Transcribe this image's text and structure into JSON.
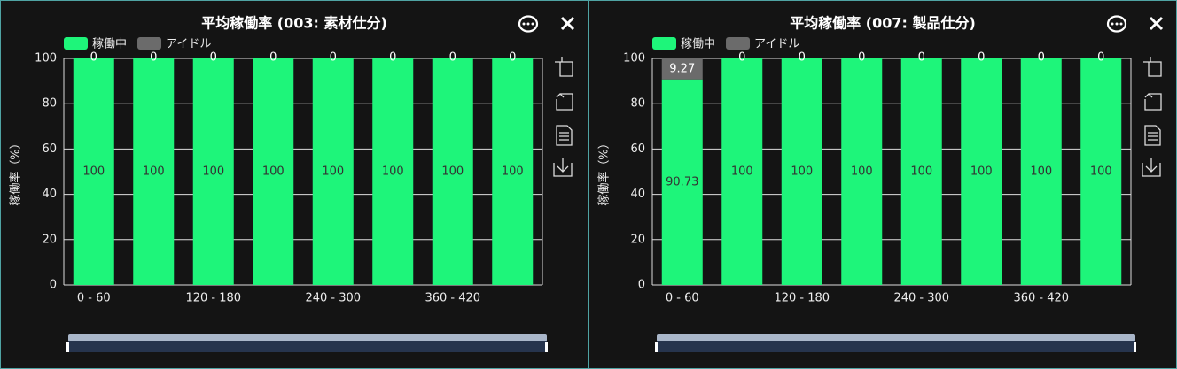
{
  "chart_data": [
    {
      "type": "stacked-bar",
      "title": "平均稼働率 (003: 素材仕分)",
      "y_label": "稼働率（%）",
      "categories": [
        "0 - 60",
        null,
        "120 - 180",
        null,
        "240 - 300",
        null,
        "360 - 420",
        null
      ],
      "series": [
        {
          "name": "稼働中",
          "color": "#1ef57a",
          "values": [
            100,
            100,
            100,
            100,
            100,
            100,
            100,
            100
          ]
        },
        {
          "name": "アイドル",
          "color": "#6b6b6b",
          "values": [
            0,
            0,
            0,
            0,
            0,
            0,
            0,
            0
          ]
        }
      ],
      "ylim": [
        0,
        100
      ],
      "yticks": [
        0,
        20,
        40,
        60,
        80,
        100
      ],
      "grid": true
    },
    {
      "type": "stacked-bar",
      "title": "平均稼働率 (007: 製品仕分)",
      "y_label": "稼働率（%）",
      "categories": [
        "0 - 60",
        null,
        "120 - 180",
        null,
        "240 - 300",
        null,
        "360 - 420",
        null
      ],
      "series": [
        {
          "name": "稼働中",
          "color": "#1ef57a",
          "values": [
            90.73,
            100,
            100,
            100,
            100,
            100,
            100,
            100
          ]
        },
        {
          "name": "アイドル",
          "color": "#6b6b6b",
          "values": [
            9.27,
            0,
            0,
            0,
            0,
            0,
            0,
            0
          ]
        }
      ],
      "ylim": [
        0,
        100
      ],
      "yticks": [
        0,
        20,
        40,
        60,
        80,
        100
      ],
      "grid": true
    }
  ]
}
